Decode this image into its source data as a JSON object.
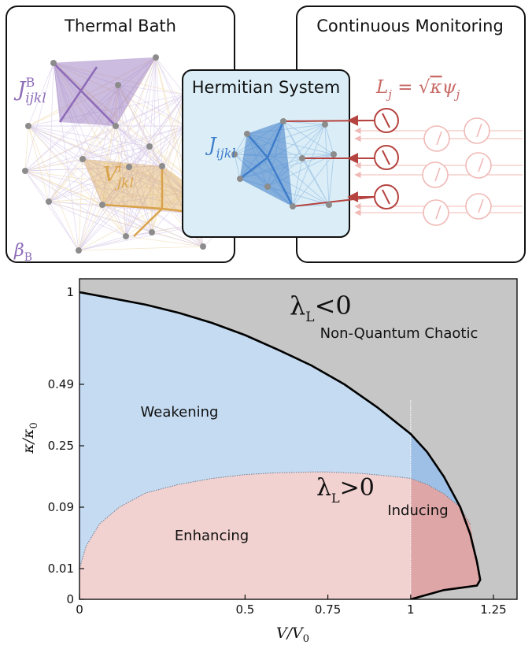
{
  "top": {
    "panels": {
      "thermal_bath": "Thermal Bath",
      "hermitian_system": "Hermitian System",
      "continuous_monitoring": "Continuous Monitoring"
    },
    "labels": {
      "bath_coupling": "J",
      "bath_coupling_sup": "B",
      "bath_coupling_sub": "ijkl",
      "interaction": "V",
      "interaction_sup": "i",
      "interaction_sub": "jkl",
      "system_coupling": "J",
      "system_coupling_sub": "ijkl",
      "beta": "β",
      "beta_sub": "B",
      "lindblad_lhs": "L",
      "lindblad_lhs_sub": "j",
      "lindblad_eq": " = ",
      "lindblad_sqrt": "√",
      "lindblad_kappa": "κ",
      "lindblad_psi": "ψ",
      "lindblad_psi_sub": "j"
    },
    "colors": {
      "bath_purple": "#8d6bb8",
      "interaction_orange": "#d9a24a",
      "system_blue": "#3d7cc9",
      "monitor_red": "#b5433f",
      "system_fill": "#dbeef7"
    }
  },
  "chart_data": {
    "type": "phase-diagram",
    "xlabel": "V/V",
    "xlabel_sub": "0",
    "ylabel": "κ/κ",
    "ylabel_sub": "0",
    "xticks": [
      "0",
      "0.5",
      "0.75",
      "1",
      "1.25"
    ],
    "xtick_values": [
      0,
      0.5,
      0.75,
      1.0,
      1.25
    ],
    "yticks": [
      "0",
      "0.01",
      "0.09",
      "0.25",
      "0.49",
      "1"
    ],
    "ytick_values": [
      0,
      0.01,
      0.09,
      0.25,
      0.49,
      1
    ],
    "y_scale": "sqrt",
    "xlim": [
      0,
      1.25
    ],
    "ylim": [
      0,
      1
    ],
    "lyapunov_boundary": [
      [
        0,
        1
      ],
      [
        0.1,
        0.96
      ],
      [
        0.2,
        0.92
      ],
      [
        0.3,
        0.87
      ],
      [
        0.4,
        0.81
      ],
      [
        0.5,
        0.74
      ],
      [
        0.6,
        0.66
      ],
      [
        0.7,
        0.58
      ],
      [
        0.8,
        0.49
      ],
      [
        0.9,
        0.39
      ],
      [
        1.0,
        0.29
      ],
      [
        1.05,
        0.23
      ],
      [
        1.1,
        0.16
      ],
      [
        1.15,
        0.09
      ],
      [
        1.18,
        0.045
      ],
      [
        1.2,
        0.015
      ],
      [
        1.21,
        0.004
      ],
      [
        1.2,
        0.002
      ],
      [
        1.1,
        0.0009
      ],
      [
        1.0,
        0
      ]
    ],
    "enhancing_boundary": [
      [
        0,
        0.01
      ],
      [
        0.02,
        0.03
      ],
      [
        0.06,
        0.06
      ],
      [
        0.12,
        0.09
      ],
      [
        0.2,
        0.12
      ],
      [
        0.3,
        0.14
      ],
      [
        0.4,
        0.155
      ],
      [
        0.5,
        0.165
      ],
      [
        0.6,
        0.17
      ],
      [
        0.7,
        0.172
      ],
      [
        0.75,
        0.172
      ],
      [
        0.85,
        0.168
      ],
      [
        0.95,
        0.16
      ],
      [
        1.0,
        0.155
      ],
      [
        1.05,
        0.14
      ],
      [
        1.1,
        0.118
      ],
      [
        1.15,
        0.09
      ],
      [
        1.18,
        0.06
      ]
    ],
    "regions": {
      "upper_label": "λ",
      "upper_label_sub": "L",
      "upper_label_rel": "<0",
      "upper_caption": "Non-Quantum Chaotic",
      "chaos_label": "λ",
      "chaos_label_sub": "L",
      "chaos_label_rel": ">0",
      "weakening": "Weakening",
      "enhancing": "Enhancing",
      "inducing": "Inducing"
    },
    "colors": {
      "non_chaotic": "#c6c6c6",
      "weakening": "#c5dbf1",
      "inducing": "#9fc0e6",
      "enhancing": "#f2d2d0",
      "enhancing_dark": "#dea6a6"
    }
  }
}
